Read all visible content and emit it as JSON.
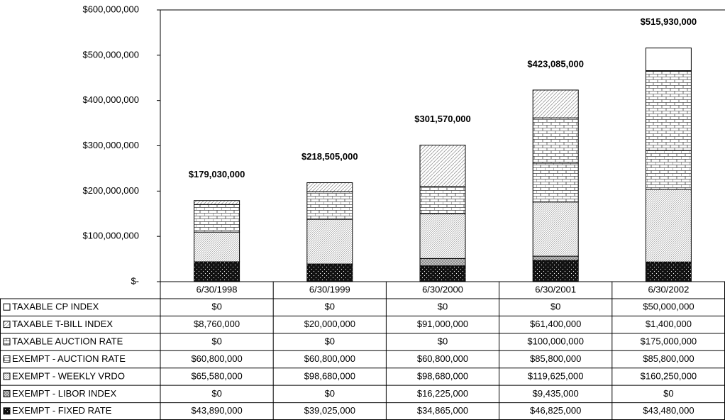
{
  "chart_data": {
    "type": "stacked_bar",
    "categories": [
      "6/30/1998",
      "6/30/1999",
      "6/30/2000",
      "6/30/2001",
      "6/30/2002"
    ],
    "ylim": [
      0,
      600000000
    ],
    "yticks": [
      {
        "value": 0,
        "label": "$-"
      },
      {
        "value": 100000000,
        "label": "$100,000,000"
      },
      {
        "value": 200000000,
        "label": "$200,000,000"
      },
      {
        "value": 300000000,
        "label": "$300,000,000"
      },
      {
        "value": 400000000,
        "label": "$400,000,000"
      },
      {
        "value": 500000000,
        "label": "$500,000,000"
      },
      {
        "value": 600000000,
        "label": "$600,000,000"
      }
    ],
    "totals": {
      "values": [
        179030000,
        218505000,
        301570000,
        423085000,
        515930000
      ],
      "value_labels": [
        "$179,030,000",
        "$218,505,000",
        "$301,570,000",
        "$423,085,000",
        "$515,930,000"
      ]
    },
    "series": [
      {
        "name": "TAXABLE CP INDEX",
        "color": "#ffffff",
        "values": [
          0,
          0,
          0,
          0,
          50000000
        ],
        "value_labels": [
          "$0",
          "$0",
          "$0",
          "$0",
          "$50,000,000"
        ]
      },
      {
        "name": "TAXABLE T-BILL INDEX",
        "color": "#e8e8e8",
        "values": [
          8760000,
          20000000,
          91000000,
          61400000,
          1400000
        ],
        "value_labels": [
          "$8,760,000",
          "$20,000,000",
          "$91,000,000",
          "$61,400,000",
          "$1,400,000"
        ]
      },
      {
        "name": "TAXABLE AUCTION RATE",
        "color": "#ffffff",
        "values": [
          0,
          0,
          0,
          100000000,
          175000000
        ],
        "value_labels": [
          "$0",
          "$0",
          "$0",
          "$100,000,000",
          "$175,000,000"
        ]
      },
      {
        "name": "EXEMPT - AUCTION RATE",
        "color": "#ffffff",
        "values": [
          60800000,
          60800000,
          60800000,
          85800000,
          85800000
        ],
        "value_labels": [
          "$60,800,000",
          "$60,800,000",
          "$60,800,000",
          "$85,800,000",
          "$85,800,000"
        ]
      },
      {
        "name": "EXEMPT - WEEKLY VRDO",
        "color": "#d8d8d8",
        "values": [
          65580000,
          98680000,
          98680000,
          119625000,
          160250000
        ],
        "value_labels": [
          "$65,580,000",
          "$98,680,000",
          "$98,680,000",
          "$119,625,000",
          "$160,250,000"
        ]
      },
      {
        "name": "EXEMPT - LIBOR INDEX",
        "color": "#a0a0a0",
        "values": [
          0,
          0,
          16225000,
          9435000,
          0
        ],
        "value_labels": [
          "$0",
          "$0",
          "$16,225,000",
          "$9,435,000",
          "$0"
        ]
      },
      {
        "name": "EXEMPT - FIXED RATE",
        "color": "#1a1a1a",
        "values": [
          43890000,
          39025000,
          34865000,
          46825000,
          43480000
        ],
        "value_labels": [
          "$43,890,000",
          "$39,025,000",
          "$34,865,000",
          "$46,825,000",
          "$43,480,000"
        ]
      }
    ]
  }
}
